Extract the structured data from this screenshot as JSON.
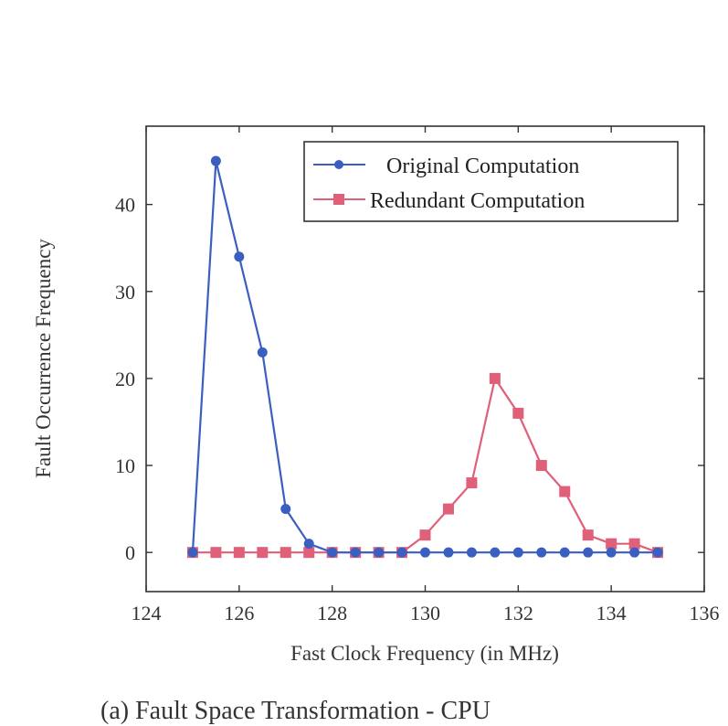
{
  "caption": "(a) Fault Space Transformation - CPU",
  "chart_data": {
    "type": "line",
    "xlabel": "Fast Clock Frequency (in MHz)",
    "ylabel": "Fault Occurrence Frequency",
    "xlim": [
      124,
      136
    ],
    "ylim": [
      -4.5,
      49
    ],
    "xticks": [
      124,
      126,
      128,
      130,
      132,
      134,
      136
    ],
    "yticks": [
      0,
      10,
      20,
      30,
      40
    ],
    "grid": false,
    "legend_position": "top-right",
    "series": [
      {
        "name": "Original Computation",
        "color": "#3a5fc0",
        "marker": "circle",
        "x": [
          125,
          125.5,
          126,
          126.5,
          127,
          127.5,
          128,
          128.5,
          129,
          129.5,
          130,
          130.5,
          131,
          131.5,
          132,
          132.5,
          133,
          133.5,
          134,
          134.5,
          135
        ],
        "y": [
          0,
          45,
          34,
          23,
          5,
          1,
          0,
          0,
          0,
          0,
          0,
          0,
          0,
          0,
          0,
          0,
          0,
          0,
          0,
          0,
          0
        ]
      },
      {
        "name": "Redundant Computation",
        "color": "#e0607a",
        "marker": "square",
        "x": [
          125,
          125.5,
          126,
          126.5,
          127,
          127.5,
          128,
          128.5,
          129,
          129.5,
          130,
          130.5,
          131,
          131.5,
          132,
          132.5,
          133,
          133.5,
          134,
          134.5,
          135
        ],
        "y": [
          0,
          0,
          0,
          0,
          0,
          0,
          0,
          0,
          0,
          0,
          2,
          5,
          8,
          20,
          16,
          10,
          7,
          2,
          1,
          1,
          0
        ]
      }
    ]
  }
}
